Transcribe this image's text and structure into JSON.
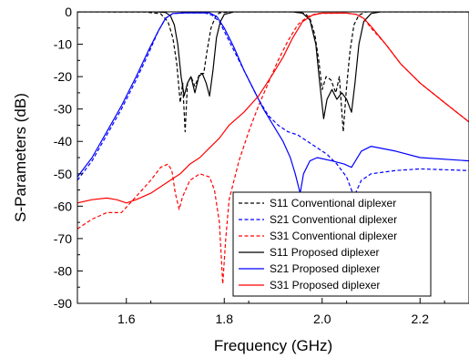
{
  "chart_data": {
    "type": "line",
    "xlabel": "Frequency (GHz)",
    "ylabel": "S-Parameters (dB)",
    "xlim": [
      1.5,
      2.3
    ],
    "ylim": [
      -90,
      0
    ],
    "xticks": [
      1.6,
      1.8,
      2.0,
      2.2
    ],
    "xtick_labels": [
      "1.6",
      "1.8",
      "2.0",
      "2.2"
    ],
    "yticks": [
      0,
      -10,
      -20,
      -30,
      -40,
      -50,
      -60,
      -70,
      -80,
      -90
    ],
    "ytick_labels": [
      "0",
      "-10",
      "-20",
      "-30",
      "-40",
      "-50",
      "-60",
      "-70",
      "-80",
      "-90"
    ],
    "grid": false,
    "legend_position": "bottom-right",
    "series": [
      {
        "name": "S11 Conventional diplexer",
        "color": "#000000",
        "dash": "dashed",
        "points": [
          [
            1.5,
            0
          ],
          [
            1.64,
            -0.05
          ],
          [
            1.67,
            -0.6
          ],
          [
            1.685,
            -3
          ],
          [
            1.695,
            -8
          ],
          [
            1.703,
            -16
          ],
          [
            1.71,
            -28
          ],
          [
            1.715,
            -22
          ],
          [
            1.72,
            -37
          ],
          [
            1.725,
            -22
          ],
          [
            1.732,
            -20
          ],
          [
            1.74,
            -23
          ],
          [
            1.75,
            -19
          ],
          [
            1.758,
            -19
          ],
          [
            1.765,
            -12
          ],
          [
            1.773,
            -5
          ],
          [
            1.782,
            -1.5
          ],
          [
            1.79,
            -0.3
          ],
          [
            1.82,
            0
          ],
          [
            1.94,
            0
          ],
          [
            1.965,
            -0.5
          ],
          [
            1.975,
            -2
          ],
          [
            1.985,
            -7
          ],
          [
            1.993,
            -15
          ],
          [
            2.0,
            -24
          ],
          [
            2.008,
            -20
          ],
          [
            2.018,
            -21
          ],
          [
            2.028,
            -25
          ],
          [
            2.035,
            -20
          ],
          [
            2.043,
            -37
          ],
          [
            2.05,
            -23
          ],
          [
            2.057,
            -12
          ],
          [
            2.065,
            -4
          ],
          [
            2.075,
            -1
          ],
          [
            2.09,
            0
          ],
          [
            2.3,
            0
          ]
        ]
      },
      {
        "name": "S21 Conventional diplexer",
        "color": "#0000ff",
        "dash": "dashed",
        "points": [
          [
            1.5,
            -52
          ],
          [
            1.53,
            -46
          ],
          [
            1.56,
            -38
          ],
          [
            1.59,
            -30
          ],
          [
            1.62,
            -21
          ],
          [
            1.645,
            -13
          ],
          [
            1.665,
            -6
          ],
          [
            1.68,
            -2
          ],
          [
            1.695,
            -0.5
          ],
          [
            1.72,
            -0.3
          ],
          [
            1.76,
            -0.3
          ],
          [
            1.775,
            -1
          ],
          [
            1.79,
            -3
          ],
          [
            1.81,
            -9
          ],
          [
            1.83,
            -15
          ],
          [
            1.85,
            -21
          ],
          [
            1.87,
            -27
          ],
          [
            1.89,
            -32
          ],
          [
            1.91,
            -35
          ],
          [
            1.93,
            -37
          ],
          [
            1.95,
            -38
          ],
          [
            1.97,
            -40
          ],
          [
            1.99,
            -42
          ],
          [
            2.01,
            -44
          ],
          [
            2.03,
            -47
          ],
          [
            2.05,
            -51
          ],
          [
            2.065,
            -57
          ],
          [
            2.08,
            -52
          ],
          [
            2.1,
            -50
          ],
          [
            2.15,
            -49
          ],
          [
            2.2,
            -48.5
          ],
          [
            2.3,
            -49
          ]
        ]
      },
      {
        "name": "S31 Conventional diplexer",
        "color": "#ff0000",
        "dash": "dashed",
        "points": [
          [
            1.5,
            -67
          ],
          [
            1.53,
            -64
          ],
          [
            1.56,
            -62
          ],
          [
            1.59,
            -62
          ],
          [
            1.62,
            -57
          ],
          [
            1.65,
            -52
          ],
          [
            1.67,
            -48
          ],
          [
            1.685,
            -47
          ],
          [
            1.693,
            -49
          ],
          [
            1.7,
            -56
          ],
          [
            1.708,
            -61
          ],
          [
            1.715,
            -57
          ],
          [
            1.73,
            -52
          ],
          [
            1.75,
            -50
          ],
          [
            1.77,
            -51
          ],
          [
            1.78,
            -55
          ],
          [
            1.79,
            -65
          ],
          [
            1.797,
            -84
          ],
          [
            1.803,
            -70
          ],
          [
            1.81,
            -58
          ],
          [
            1.83,
            -46
          ],
          [
            1.85,
            -37
          ],
          [
            1.87,
            -29
          ],
          [
            1.89,
            -22
          ],
          [
            1.91,
            -15
          ],
          [
            1.93,
            -9
          ],
          [
            1.95,
            -4
          ],
          [
            1.97,
            -1.5
          ],
          [
            1.99,
            -0.5
          ],
          [
            2.05,
            -0.4
          ],
          [
            2.07,
            -0.8
          ],
          [
            2.085,
            -2
          ],
          [
            2.1,
            -5
          ],
          [
            2.13,
            -10
          ],
          [
            2.16,
            -16
          ],
          [
            2.2,
            -22
          ],
          [
            2.25,
            -28
          ],
          [
            2.3,
            -34
          ]
        ]
      },
      {
        "name": "S11 Proposed diplexer",
        "color": "#000000",
        "dash": "solid",
        "points": [
          [
            1.5,
            0
          ],
          [
            1.66,
            0
          ],
          [
            1.68,
            -0.2
          ],
          [
            1.69,
            -1.2
          ],
          [
            1.698,
            -4
          ],
          [
            1.705,
            -10
          ],
          [
            1.712,
            -20
          ],
          [
            1.718,
            -26
          ],
          [
            1.725,
            -22
          ],
          [
            1.732,
            -20
          ],
          [
            1.74,
            -25
          ],
          [
            1.748,
            -20
          ],
          [
            1.755,
            -19
          ],
          [
            1.763,
            -22
          ],
          [
            1.77,
            -26
          ],
          [
            1.777,
            -18
          ],
          [
            1.784,
            -8
          ],
          [
            1.792,
            -3
          ],
          [
            1.8,
            -0.8
          ],
          [
            1.82,
            0
          ],
          [
            1.94,
            0
          ],
          [
            1.96,
            -0.4
          ],
          [
            1.975,
            -2.5
          ],
          [
            1.987,
            -10
          ],
          [
            1.995,
            -22
          ],
          [
            2.003,
            -33
          ],
          [
            2.01,
            -27
          ],
          [
            2.02,
            -24
          ],
          [
            2.03,
            -27
          ],
          [
            2.04,
            -25
          ],
          [
            2.05,
            -27
          ],
          [
            2.06,
            -31
          ],
          [
            2.067,
            -22
          ],
          [
            2.075,
            -10
          ],
          [
            2.085,
            -3
          ],
          [
            2.1,
            -0.5
          ],
          [
            2.12,
            0
          ],
          [
            2.3,
            0
          ]
        ]
      },
      {
        "name": "S21 Proposed diplexer",
        "color": "#0000ff",
        "dash": "solid",
        "points": [
          [
            1.5,
            -51
          ],
          [
            1.53,
            -45
          ],
          [
            1.56,
            -37
          ],
          [
            1.59,
            -29
          ],
          [
            1.62,
            -20
          ],
          [
            1.645,
            -12
          ],
          [
            1.665,
            -6
          ],
          [
            1.68,
            -2
          ],
          [
            1.695,
            -0.5
          ],
          [
            1.72,
            -0.3
          ],
          [
            1.77,
            -0.3
          ],
          [
            1.785,
            -1.5
          ],
          [
            1.8,
            -5
          ],
          [
            1.82,
            -11
          ],
          [
            1.84,
            -18
          ],
          [
            1.86,
            -24
          ],
          [
            1.88,
            -30
          ],
          [
            1.9,
            -35
          ],
          [
            1.92,
            -40
          ],
          [
            1.935,
            -45
          ],
          [
            1.945,
            -50
          ],
          [
            1.955,
            -56
          ],
          [
            1.962,
            -50
          ],
          [
            1.975,
            -46
          ],
          [
            1.99,
            -45
          ],
          [
            2.02,
            -46
          ],
          [
            2.045,
            -47
          ],
          [
            2.06,
            -48
          ],
          [
            2.08,
            -43
          ],
          [
            2.1,
            -41.5
          ],
          [
            2.15,
            -43
          ],
          [
            2.2,
            -45
          ],
          [
            2.3,
            -46
          ]
        ]
      },
      {
        "name": "S31 Proposed diplexer",
        "color": "#ff0000",
        "dash": "solid",
        "points": [
          [
            1.5,
            -59
          ],
          [
            1.53,
            -58
          ],
          [
            1.56,
            -57.5
          ],
          [
            1.58,
            -58
          ],
          [
            1.6,
            -59
          ],
          [
            1.62,
            -58
          ],
          [
            1.65,
            -56
          ],
          [
            1.68,
            -53
          ],
          [
            1.71,
            -50
          ],
          [
            1.73,
            -47
          ],
          [
            1.75,
            -45
          ],
          [
            1.77,
            -42
          ],
          [
            1.79,
            -39
          ],
          [
            1.81,
            -35
          ],
          [
            1.84,
            -31
          ],
          [
            1.87,
            -26
          ],
          [
            1.9,
            -19
          ],
          [
            1.92,
            -14
          ],
          [
            1.94,
            -8
          ],
          [
            1.96,
            -3
          ],
          [
            1.98,
            -1
          ],
          [
            2.0,
            -0.4
          ],
          [
            2.05,
            -0.4
          ],
          [
            2.07,
            -0.8
          ],
          [
            2.085,
            -2
          ],
          [
            2.1,
            -4.5
          ],
          [
            2.13,
            -10
          ],
          [
            2.16,
            -16
          ],
          [
            2.2,
            -22
          ],
          [
            2.25,
            -28
          ],
          [
            2.3,
            -34
          ]
        ]
      }
    ]
  }
}
